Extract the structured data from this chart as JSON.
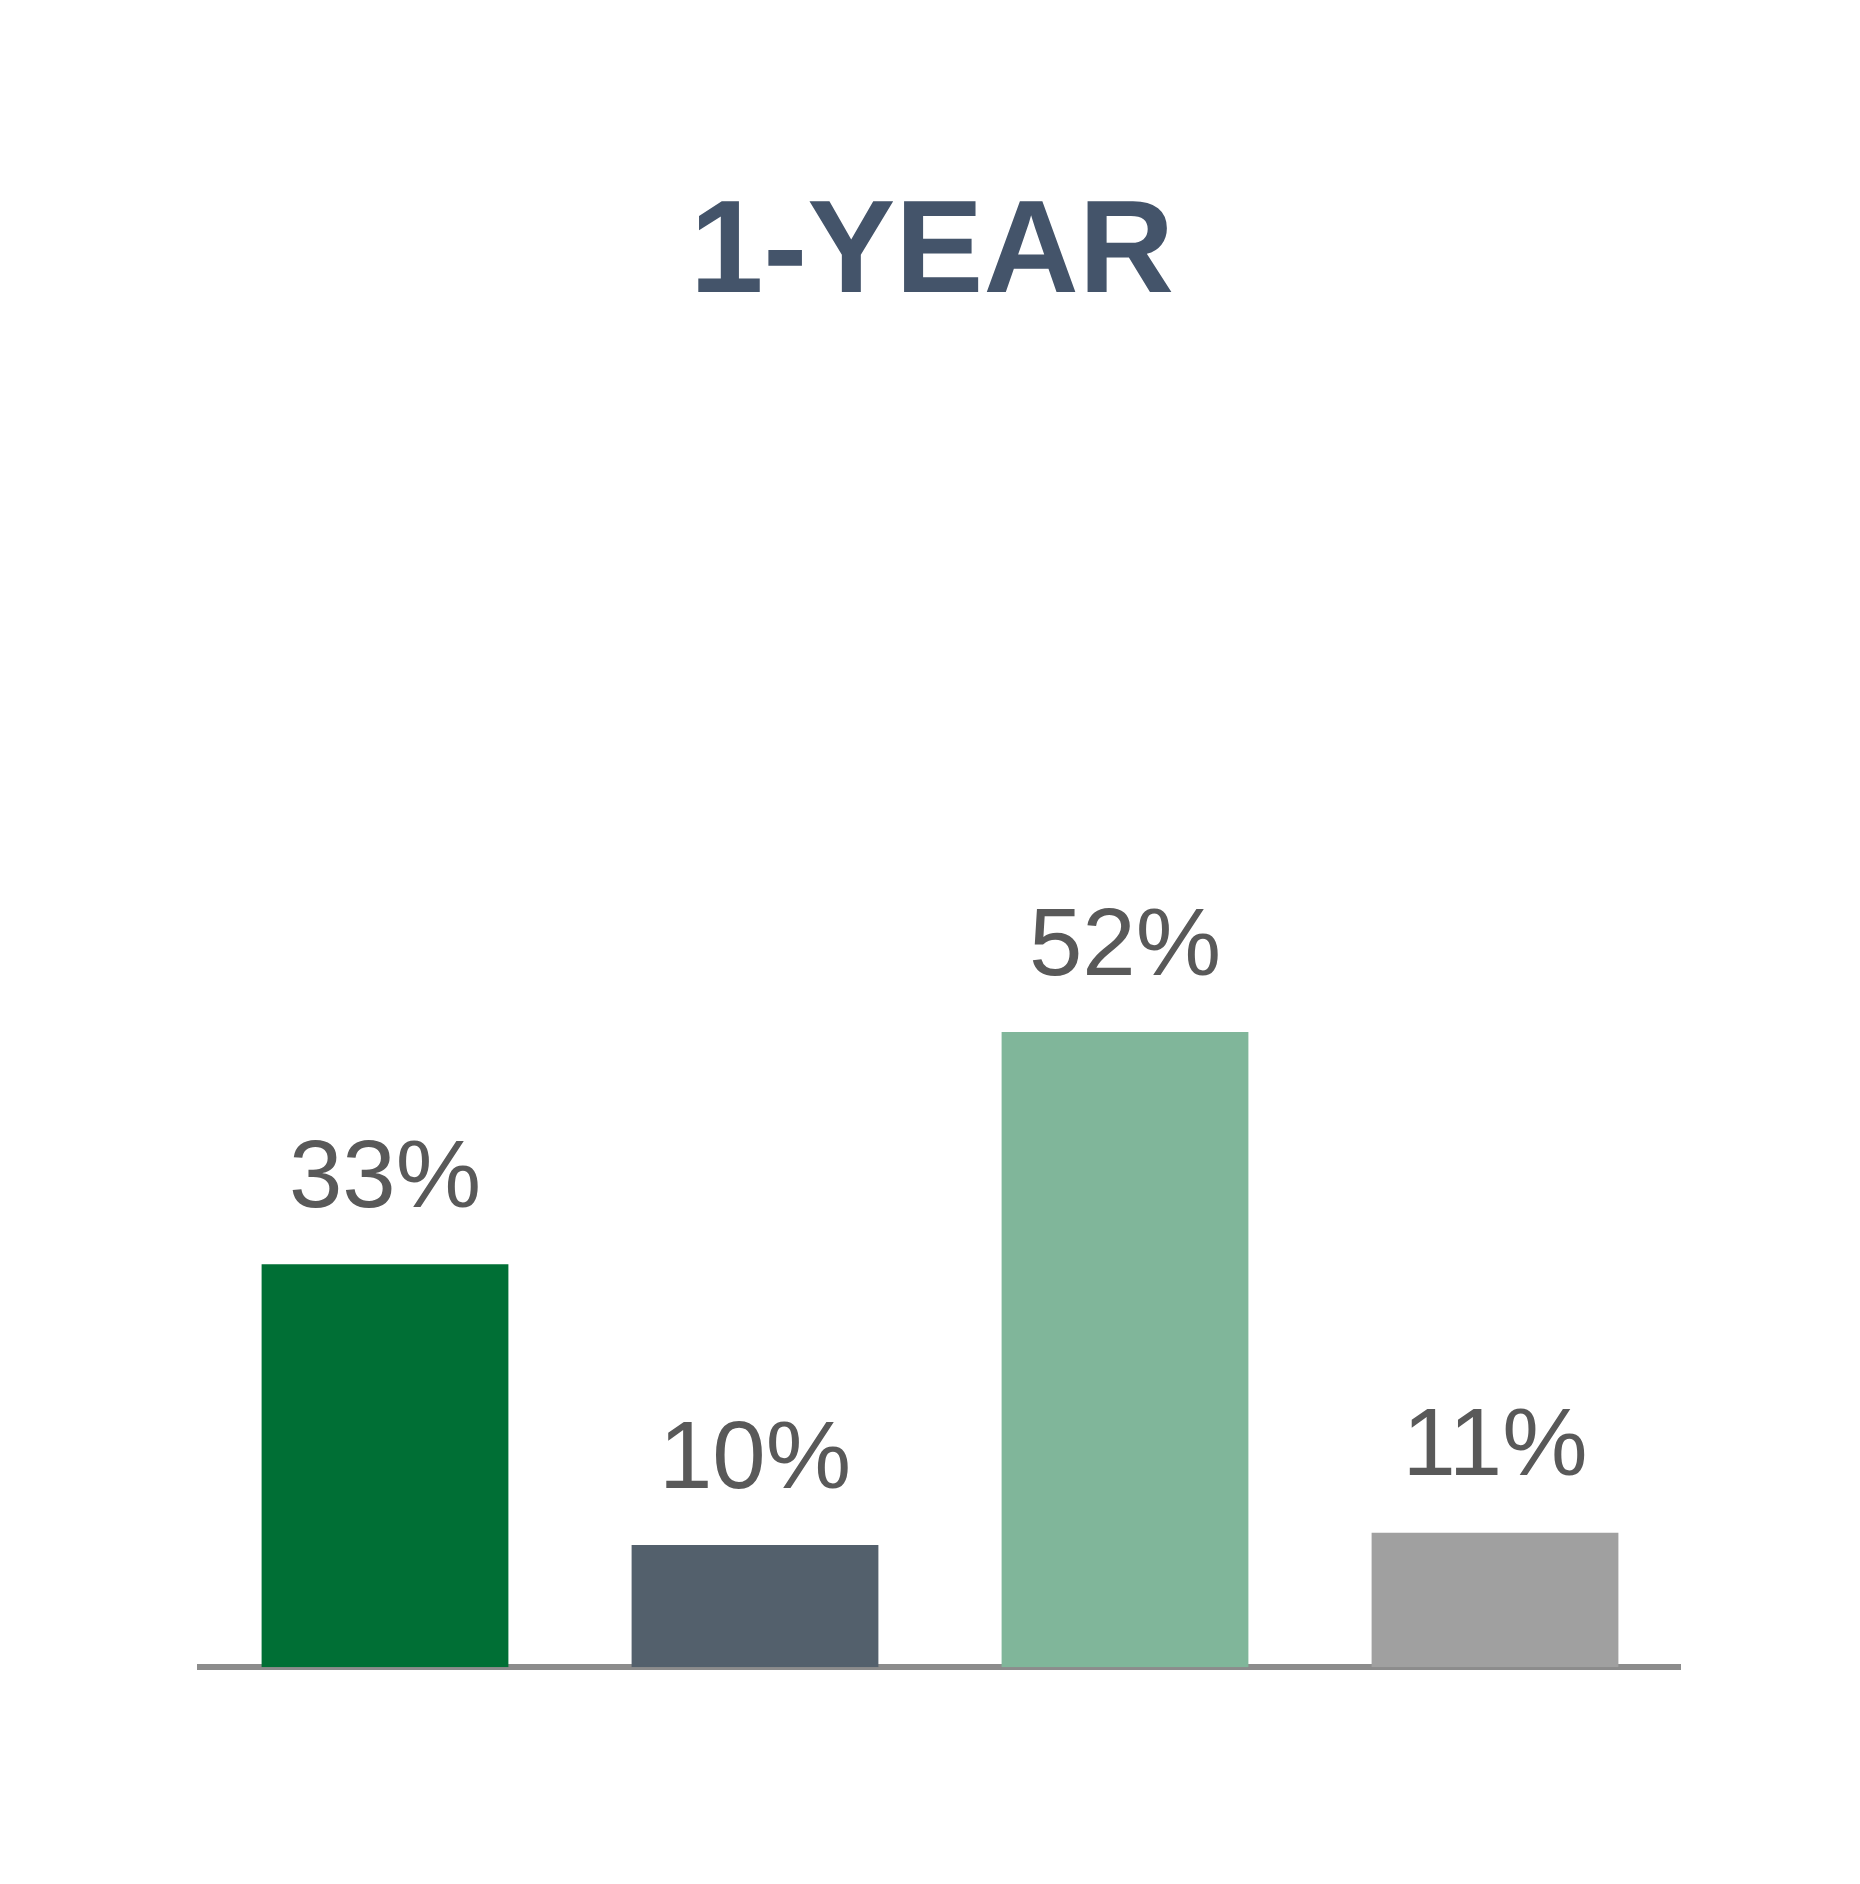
{
  "chart_data": {
    "type": "bar",
    "title": "1-YEAR",
    "relative": false,
    "categories": [
      null,
      null,
      null,
      null
    ],
    "values": [
      33,
      10,
      52,
      11
    ],
    "colors": [
      "#006f35",
      "#53606c",
      "#80b69a",
      "#a0a0a0"
    ],
    "value_labels": [
      "33%",
      "10%",
      "52%",
      "11%"
    ],
    "grid": false,
    "legend": false
  }
}
